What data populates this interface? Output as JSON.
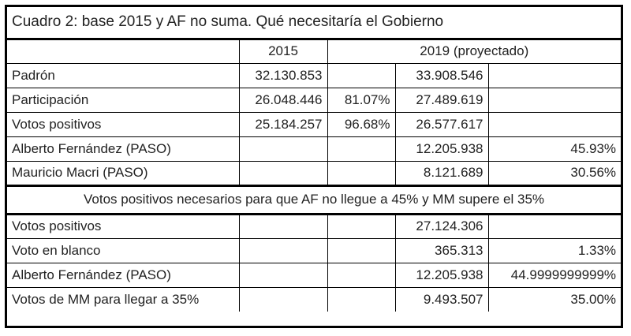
{
  "title": "Cuadro 2: base 2015 y AF no suma. Qué necesitaría el Gobierno",
  "headers": {
    "year_2015": "2015",
    "year_2019": "2019 (proyectado)"
  },
  "rows_top": [
    {
      "label": "Padrón",
      "v2015": "32.130.853",
      "p2015": "",
      "v2019": "33.908.546",
      "p2019": ""
    },
    {
      "label": "Participación",
      "v2015": "26.048.446",
      "p2015": "81.07%",
      "v2019": "27.489.619",
      "p2019": ""
    },
    {
      "label": "Votos positivos",
      "v2015": "25.184.257",
      "p2015": "96.68%",
      "v2019": "26.577.617",
      "p2019": ""
    },
    {
      "label": "Alberto Fernández (PASO)",
      "v2015": "",
      "p2015": "",
      "v2019": "12.205.938",
      "p2019": "45.93%"
    },
    {
      "label": "Mauricio Macri (PASO)",
      "v2015": "",
      "p2015": "",
      "v2019": "8.121.689",
      "p2019": "30.56%"
    }
  ],
  "banner": "Votos positivos necesarios para que AF no llegue a 45% y MM supere el 35%",
  "rows_bottom": [
    {
      "label": "Votos positivos",
      "v2015": "",
      "p2015": "",
      "v2019": "27.124.306",
      "p2019": ""
    },
    {
      "label": "Voto en blanco",
      "v2015": "",
      "p2015": "",
      "v2019": "365.313",
      "p2019": "1.33%"
    },
    {
      "label": "Alberto Fernández (PASO)",
      "v2015": "",
      "p2015": "",
      "v2019": "12.205.938",
      "p2019": "44.9999999999%"
    },
    {
      "label": "Votos de MM para llegar a 35%",
      "v2015": "",
      "p2015": "",
      "v2019": "9.493.507",
      "p2019": "35.00%"
    }
  ]
}
